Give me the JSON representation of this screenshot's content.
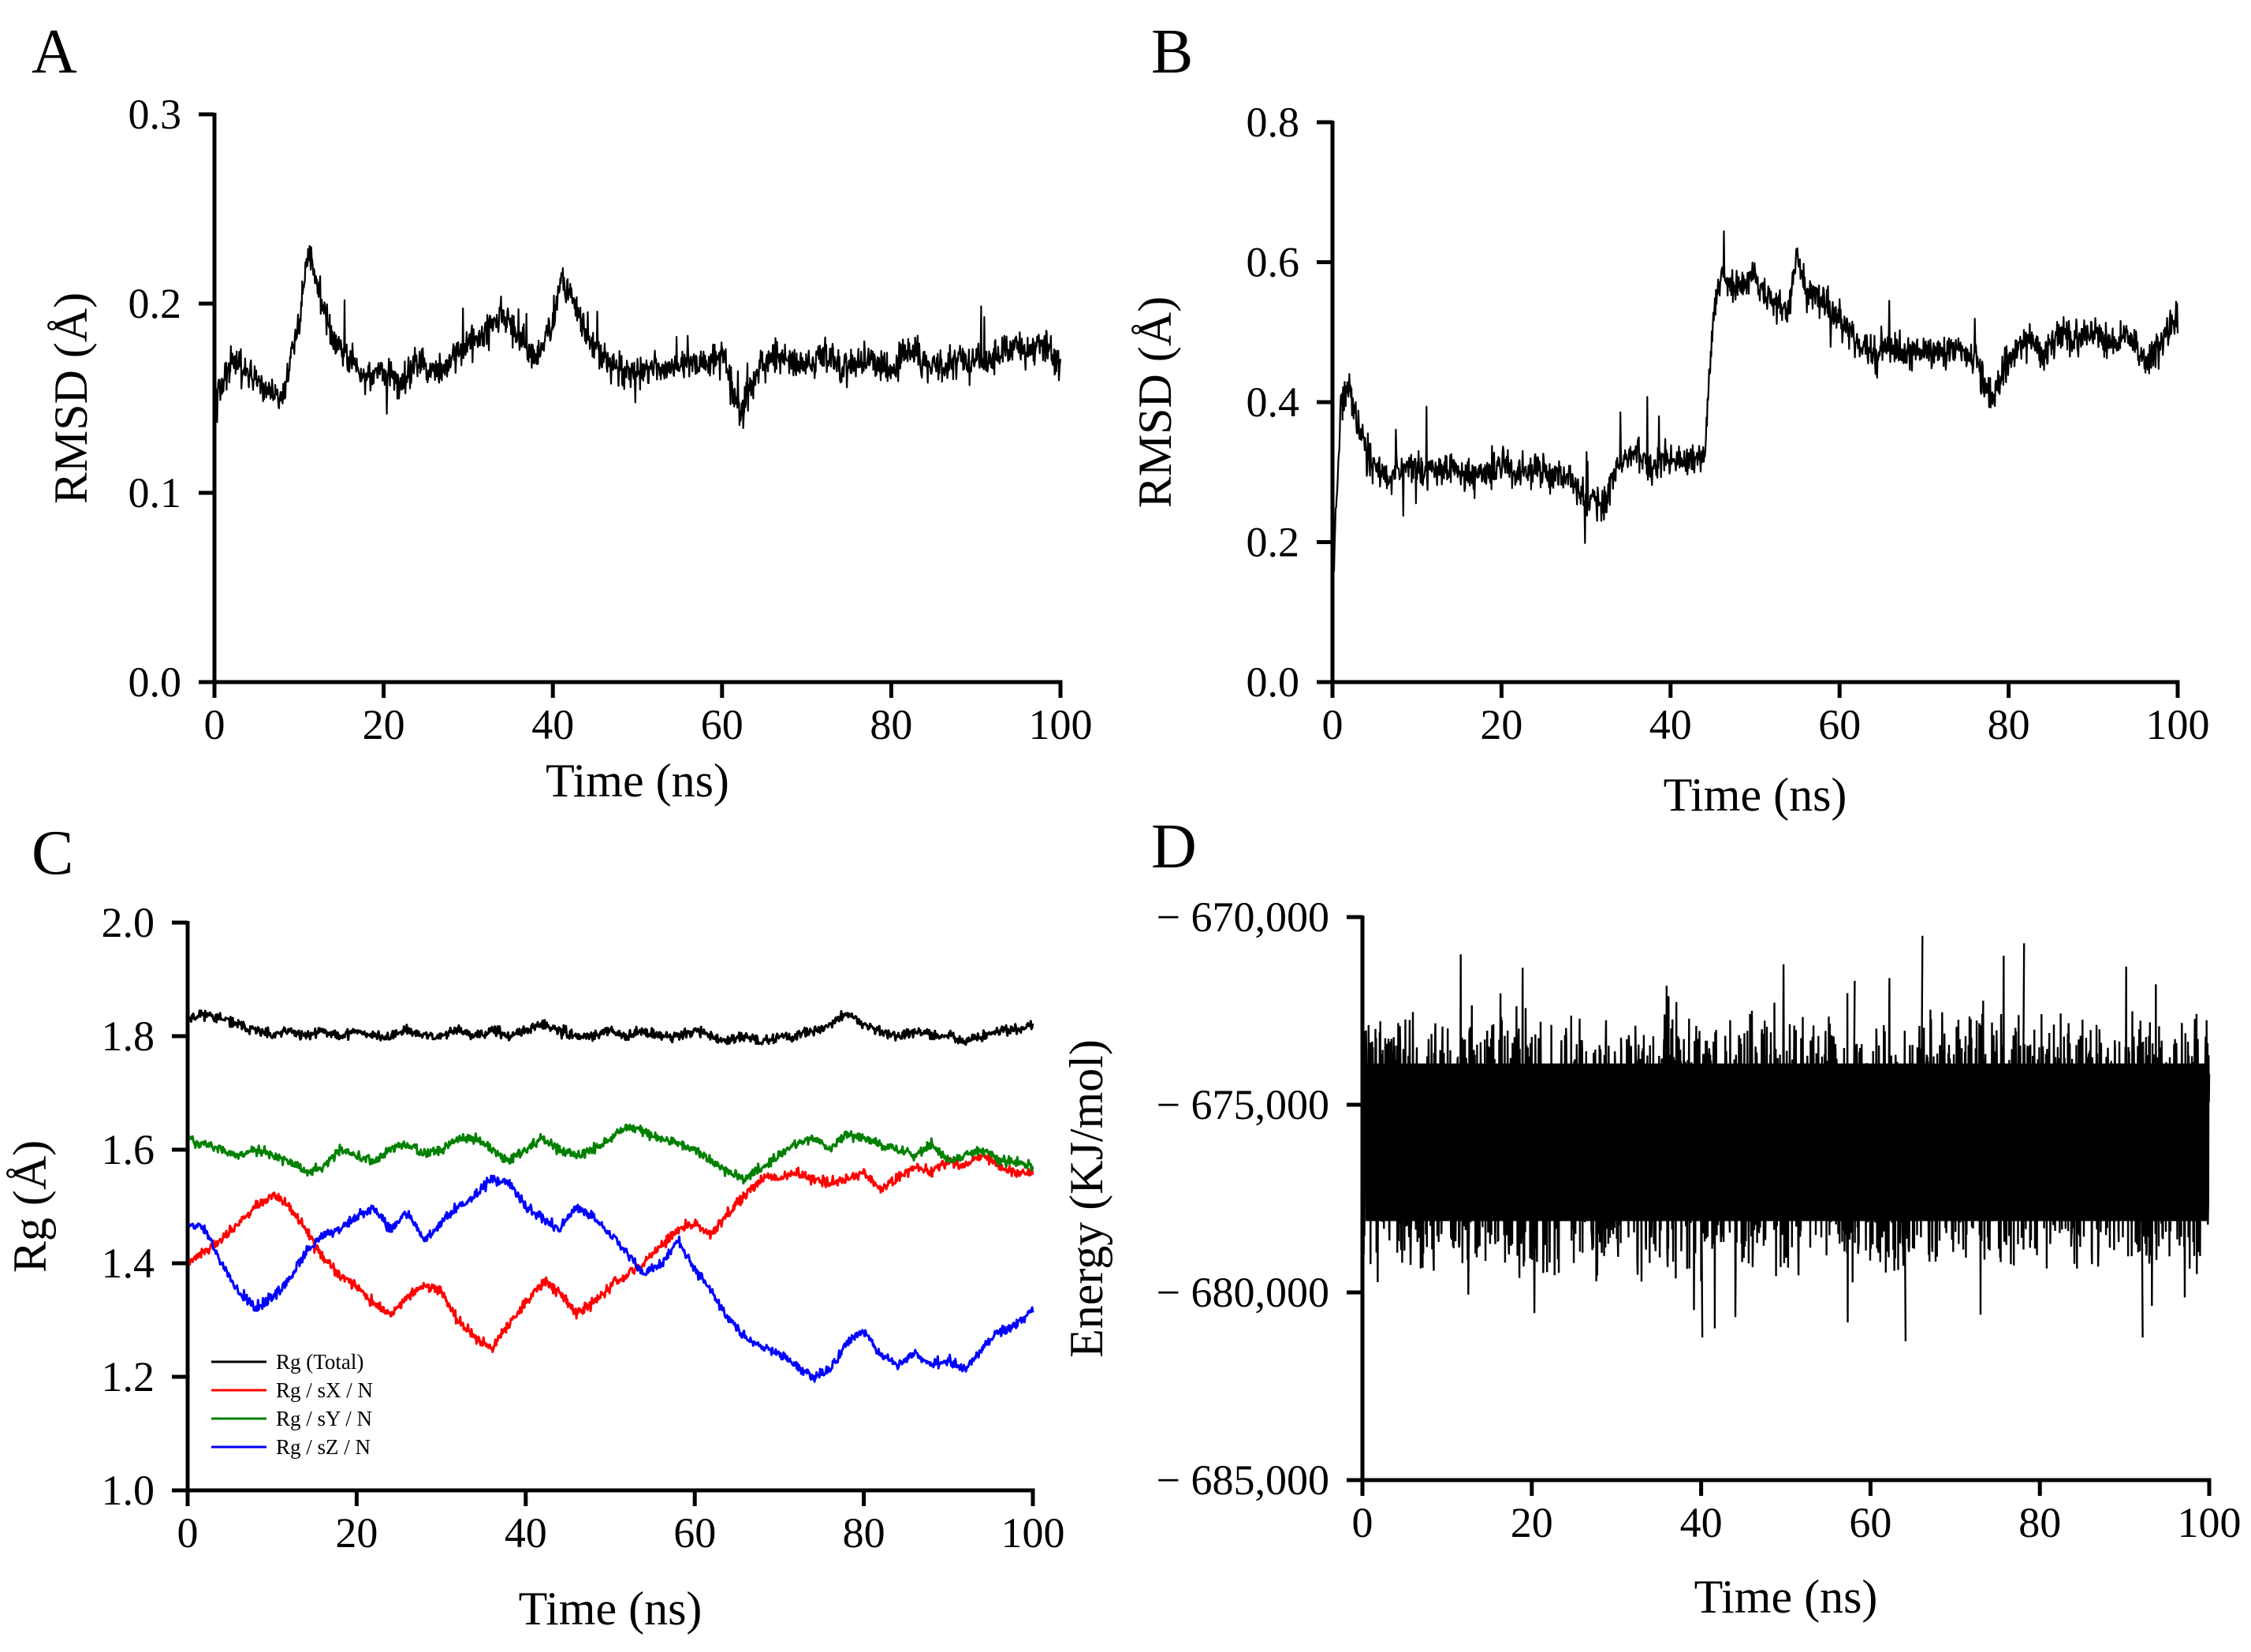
{
  "figure": {
    "panels": [
      "A",
      "B",
      "C",
      "D"
    ]
  },
  "chart_data": [
    {
      "panel": "A",
      "type": "line",
      "xlabel": "Time (ns)",
      "ylabel": "RMSD (Å)",
      "xlim": [
        0,
        100
      ],
      "ylim": [
        0,
        0.3
      ],
      "xticks": [
        0,
        20,
        40,
        60,
        80,
        100
      ],
      "yticks": [
        "0.0",
        "0.1",
        "0.2",
        "0.3"
      ],
      "yticks_values": [
        0.0,
        0.1,
        0.2,
        0.3
      ],
      "grid": false,
      "series": [
        {
          "color": "#000000",
          "x": [
            0,
            2,
            4,
            6,
            8,
            10,
            11,
            12,
            14,
            16,
            18,
            20,
            22,
            24,
            26,
            28,
            30,
            32,
            34,
            36,
            38,
            40,
            41,
            42,
            44,
            46,
            48,
            50,
            52,
            54,
            56,
            58,
            60,
            62,
            64,
            66,
            68,
            70,
            72,
            74,
            76,
            78,
            80,
            82,
            84,
            86,
            88,
            90,
            92,
            94,
            96,
            98,
            100
          ],
          "y": [
            0.15,
            0.168,
            0.162,
            0.155,
            0.15,
            0.19,
            0.225,
            0.215,
            0.18,
            0.17,
            0.16,
            0.163,
            0.158,
            0.17,
            0.162,
            0.172,
            0.178,
            0.185,
            0.195,
            0.18,
            0.172,
            0.19,
            0.215,
            0.205,
            0.185,
            0.17,
            0.165,
            0.162,
            0.167,
            0.163,
            0.17,
            0.168,
            0.175,
            0.14,
            0.163,
            0.172,
            0.17,
            0.168,
            0.173,
            0.165,
            0.17,
            0.168,
            0.163,
            0.175,
            0.17,
            0.165,
            0.172,
            0.168,
            0.17,
            0.178,
            0.175,
            0.18,
            0.168
          ]
        }
      ]
    },
    {
      "panel": "B",
      "type": "line",
      "xlabel": "Time (ns)",
      "ylabel": "RMSD (Å)",
      "xlim": [
        0,
        100
      ],
      "ylim": [
        0,
        0.8
      ],
      "xticks": [
        0,
        20,
        40,
        60,
        80,
        100
      ],
      "yticks": [
        "0.0",
        "0.2",
        "0.4",
        "0.6",
        "0.8"
      ],
      "yticks_values": [
        0.0,
        0.2,
        0.4,
        0.6,
        0.8
      ],
      "grid": false,
      "series": [
        {
          "color": "#000000",
          "x": [
            0,
            1,
            2,
            4,
            6,
            8,
            10,
            12,
            14,
            16,
            18,
            20,
            22,
            24,
            26,
            28,
            30,
            32,
            34,
            36,
            38,
            40,
            42,
            44,
            45,
            46,
            48,
            50,
            52,
            54,
            55,
            56,
            58,
            60,
            62,
            64,
            66,
            68,
            70,
            72,
            74,
            76,
            78,
            80,
            82,
            84,
            86,
            88,
            90,
            92,
            94,
            96,
            98,
            100
          ],
          "y": [
            0.12,
            0.4,
            0.42,
            0.33,
            0.29,
            0.3,
            0.305,
            0.3,
            0.31,
            0.295,
            0.3,
            0.31,
            0.3,
            0.305,
            0.3,
            0.295,
            0.26,
            0.25,
            0.32,
            0.33,
            0.31,
            0.32,
            0.315,
            0.32,
            0.52,
            0.58,
            0.56,
            0.58,
            0.54,
            0.53,
            0.62,
            0.56,
            0.55,
            0.52,
            0.48,
            0.47,
            0.48,
            0.47,
            0.48,
            0.47,
            0.48,
            0.46,
            0.4,
            0.46,
            0.49,
            0.47,
            0.5,
            0.49,
            0.5,
            0.48,
            0.5,
            0.46,
            0.48,
            0.52
          ]
        }
      ]
    },
    {
      "panel": "C",
      "type": "line",
      "xlabel": "Time (ns)",
      "ylabel": "Rg (Å)",
      "xlim": [
        0,
        100
      ],
      "ylim": [
        1.0,
        2.0
      ],
      "xticks": [
        0,
        20,
        40,
        60,
        80,
        100
      ],
      "yticks": [
        "1.0",
        "1.2",
        "1.4",
        "1.6",
        "1.8",
        "2.0"
      ],
      "yticks_values": [
        1.0,
        1.2,
        1.4,
        1.6,
        1.8,
        2.0
      ],
      "grid": false,
      "legend": {
        "placement": "bottom-left"
      },
      "x": [
        0,
        2,
        4,
        6,
        8,
        10,
        12,
        14,
        16,
        18,
        20,
        22,
        24,
        26,
        28,
        30,
        32,
        34,
        36,
        38,
        40,
        42,
        44,
        46,
        48,
        50,
        52,
        54,
        56,
        58,
        60,
        62,
        64,
        66,
        68,
        70,
        72,
        74,
        76,
        78,
        80,
        82,
        84,
        86,
        88,
        90,
        92,
        94,
        96,
        98,
        100
      ],
      "series": [
        {
          "name": "Rg (Total)",
          "color": "#000000",
          "values": [
            1.83,
            1.84,
            1.83,
            1.82,
            1.81,
            1.8,
            1.81,
            1.8,
            1.81,
            1.8,
            1.81,
            1.8,
            1.8,
            1.81,
            1.8,
            1.8,
            1.81,
            1.8,
            1.81,
            1.8,
            1.81,
            1.82,
            1.81,
            1.8,
            1.8,
            1.81,
            1.8,
            1.81,
            1.8,
            1.8,
            1.81,
            1.8,
            1.79,
            1.8,
            1.79,
            1.8,
            1.8,
            1.81,
            1.82,
            1.84,
            1.82,
            1.81,
            1.8,
            1.81,
            1.8,
            1.8,
            1.79,
            1.8,
            1.81,
            1.81,
            1.82
          ]
        },
        {
          "name": "Rg / sX / N",
          "color": "#ff0000",
          "values": [
            1.4,
            1.42,
            1.44,
            1.47,
            1.5,
            1.52,
            1.5,
            1.46,
            1.41,
            1.38,
            1.36,
            1.33,
            1.31,
            1.34,
            1.36,
            1.35,
            1.3,
            1.27,
            1.25,
            1.29,
            1.33,
            1.37,
            1.35,
            1.31,
            1.33,
            1.36,
            1.38,
            1.4,
            1.43,
            1.46,
            1.47,
            1.45,
            1.49,
            1.52,
            1.55,
            1.55,
            1.56,
            1.55,
            1.54,
            1.55,
            1.56,
            1.53,
            1.55,
            1.57,
            1.56,
            1.58,
            1.57,
            1.59,
            1.57,
            1.56,
            1.56
          ]
        },
        {
          "name": "Rg / sY / N",
          "color": "#008000",
          "values": [
            1.62,
            1.61,
            1.6,
            1.59,
            1.6,
            1.59,
            1.58,
            1.56,
            1.57,
            1.6,
            1.59,
            1.58,
            1.6,
            1.61,
            1.59,
            1.6,
            1.62,
            1.62,
            1.6,
            1.58,
            1.6,
            1.62,
            1.6,
            1.59,
            1.6,
            1.62,
            1.64,
            1.63,
            1.62,
            1.61,
            1.6,
            1.58,
            1.56,
            1.55,
            1.57,
            1.59,
            1.61,
            1.62,
            1.6,
            1.63,
            1.62,
            1.61,
            1.6,
            1.59,
            1.61,
            1.58,
            1.59,
            1.6,
            1.58,
            1.58,
            1.57
          ]
        },
        {
          "name": "Rg / sZ / N",
          "color": "#0000ff",
          "values": [
            1.47,
            1.46,
            1.4,
            1.35,
            1.32,
            1.34,
            1.37,
            1.42,
            1.45,
            1.46,
            1.48,
            1.5,
            1.46,
            1.49,
            1.44,
            1.47,
            1.5,
            1.52,
            1.55,
            1.54,
            1.5,
            1.48,
            1.46,
            1.5,
            1.48,
            1.45,
            1.42,
            1.38,
            1.4,
            1.44,
            1.39,
            1.35,
            1.3,
            1.27,
            1.25,
            1.24,
            1.22,
            1.2,
            1.21,
            1.26,
            1.28,
            1.24,
            1.22,
            1.24,
            1.22,
            1.23,
            1.21,
            1.25,
            1.28,
            1.29,
            1.32
          ]
        }
      ]
    },
    {
      "panel": "D",
      "type": "line",
      "xlabel": "Time (ns)",
      "ylabel": "Energy (KJ/mol)",
      "xlim": [
        0,
        100
      ],
      "ylim": [
        -685000,
        -670000
      ],
      "yticks": [
        "− 685,000",
        "− 680,000",
        "− 675,000",
        "− 670,000"
      ],
      "yticks_values": [
        -685000,
        -680000,
        -675000,
        -670000
      ],
      "xticks": [
        0,
        20,
        40,
        60,
        80,
        100
      ],
      "grid": false,
      "series": [
        {
          "color": "#000000",
          "mean": -676000,
          "band": [
            -679000,
            -673000
          ],
          "extremes": [
            -681300,
            -670700
          ]
        }
      ]
    }
  ]
}
